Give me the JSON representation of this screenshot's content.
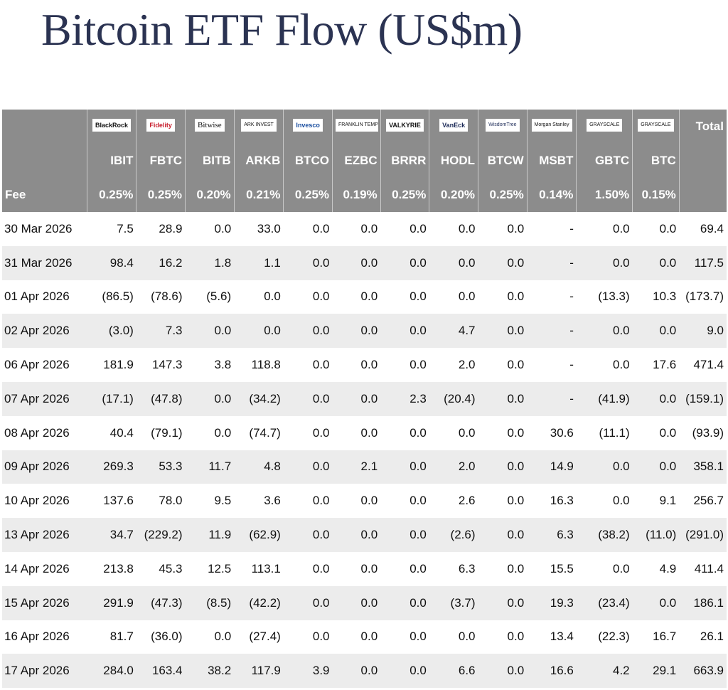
{
  "title": "Bitcoin ETF Flow (US$m)",
  "issuers": [
    "BlackRock",
    "Fidelity",
    "Bitwise",
    "ARK INVEST",
    "Invesco",
    "FRANKLIN TEMPLETON",
    "VALKYRIE",
    "VanEck",
    "WisdomTree",
    "Morgan Stanley",
    "GRAYSCALE",
    "GRAYSCALE"
  ],
  "total_label": "Total",
  "tickers": [
    "IBIT",
    "FBTC",
    "BITB",
    "ARKB",
    "BTCO",
    "EZBC",
    "BRRR",
    "HODL",
    "BTCW",
    "MSBT",
    "GBTC",
    "BTC"
  ],
  "fee_label": "Fee",
  "fees": [
    "0.25%",
    "0.25%",
    "0.20%",
    "0.21%",
    "0.25%",
    "0.19%",
    "0.25%",
    "0.20%",
    "0.25%",
    "0.14%",
    "1.50%",
    "0.15%"
  ],
  "rows": [
    {
      "date": "30 Mar 2026",
      "values": [
        "7.5",
        "28.9",
        "0.0",
        "33.0",
        "0.0",
        "0.0",
        "0.0",
        "0.0",
        "0.0",
        "-",
        "0.0",
        "0.0",
        "69.4"
      ]
    },
    {
      "date": "31 Mar 2026",
      "values": [
        "98.4",
        "16.2",
        "1.8",
        "1.1",
        "0.0",
        "0.0",
        "0.0",
        "0.0",
        "0.0",
        "-",
        "0.0",
        "0.0",
        "117.5"
      ]
    },
    {
      "date": "01 Apr 2026",
      "values": [
        "(86.5)",
        "(78.6)",
        "(5.6)",
        "0.0",
        "0.0",
        "0.0",
        "0.0",
        "0.0",
        "0.0",
        "-",
        "(13.3)",
        "10.3",
        "(173.7)"
      ]
    },
    {
      "date": "02 Apr 2026",
      "values": [
        "(3.0)",
        "7.3",
        "0.0",
        "0.0",
        "0.0",
        "0.0",
        "0.0",
        "4.7",
        "0.0",
        "-",
        "0.0",
        "0.0",
        "9.0"
      ]
    },
    {
      "date": "06 Apr 2026",
      "values": [
        "181.9",
        "147.3",
        "3.8",
        "118.8",
        "0.0",
        "0.0",
        "0.0",
        "2.0",
        "0.0",
        "-",
        "0.0",
        "17.6",
        "471.4"
      ]
    },
    {
      "date": "07 Apr 2026",
      "values": [
        "(17.1)",
        "(47.8)",
        "0.0",
        "(34.2)",
        "0.0",
        "0.0",
        "2.3",
        "(20.4)",
        "0.0",
        "-",
        "(41.9)",
        "0.0",
        "(159.1)"
      ]
    },
    {
      "date": "08 Apr 2026",
      "values": [
        "40.4",
        "(79.1)",
        "0.0",
        "(74.7)",
        "0.0",
        "0.0",
        "0.0",
        "0.0",
        "0.0",
        "30.6",
        "(11.1)",
        "0.0",
        "(93.9)"
      ]
    },
    {
      "date": "09 Apr 2026",
      "values": [
        "269.3",
        "53.3",
        "11.7",
        "4.8",
        "0.0",
        "2.1",
        "0.0",
        "2.0",
        "0.0",
        "14.9",
        "0.0",
        "0.0",
        "358.1"
      ]
    },
    {
      "date": "10 Apr 2026",
      "values": [
        "137.6",
        "78.0",
        "9.5",
        "3.6",
        "0.0",
        "0.0",
        "0.0",
        "2.6",
        "0.0",
        "16.3",
        "0.0",
        "9.1",
        "256.7"
      ]
    },
    {
      "date": "13 Apr 2026",
      "values": [
        "34.7",
        "(229.2)",
        "11.9",
        "(62.9)",
        "0.0",
        "0.0",
        "0.0",
        "(2.6)",
        "0.0",
        "6.3",
        "(38.2)",
        "(11.0)",
        "(291.0)"
      ]
    },
    {
      "date": "14 Apr 2026",
      "values": [
        "213.8",
        "45.3",
        "12.5",
        "113.1",
        "0.0",
        "0.0",
        "0.0",
        "6.3",
        "0.0",
        "15.5",
        "0.0",
        "4.9",
        "411.4"
      ]
    },
    {
      "date": "15 Apr 2026",
      "values": [
        "291.9",
        "(47.3)",
        "(8.5)",
        "(42.2)",
        "0.0",
        "0.0",
        "0.0",
        "(3.7)",
        "0.0",
        "19.3",
        "(23.4)",
        "0.0",
        "186.1"
      ]
    },
    {
      "date": "16 Apr 2026",
      "values": [
        "81.7",
        "(36.0)",
        "0.0",
        "(27.4)",
        "0.0",
        "0.0",
        "0.0",
        "0.0",
        "0.0",
        "13.4",
        "(22.3)",
        "16.7",
        "26.1"
      ]
    },
    {
      "date": "17 Apr 2026",
      "values": [
        "284.0",
        "163.4",
        "38.2",
        "117.9",
        "3.9",
        "0.0",
        "0.0",
        "6.6",
        "0.0",
        "16.6",
        "4.2",
        "29.1",
        "663.9"
      ]
    }
  ],
  "colors": {
    "header_bg": "#8c8c8c",
    "negative": "#e0392f",
    "title": "#2b3352",
    "row_alt": "#ececec"
  }
}
